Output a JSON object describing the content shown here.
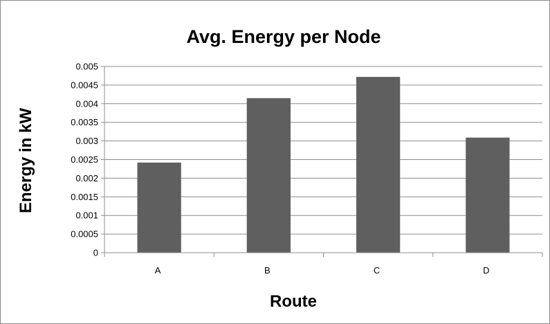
{
  "chart_data": {
    "type": "bar",
    "title": "Avg. Energy per Node",
    "xlabel": "Route",
    "ylabel": "Energy in kW",
    "categories": [
      "A",
      "B",
      "C",
      "D"
    ],
    "values": [
      0.00242,
      0.00415,
      0.00472,
      0.00309
    ],
    "ylim": [
      0,
      0.005
    ],
    "yticks": [
      {
        "value": 0,
        "label": "0"
      },
      {
        "value": 0.0005,
        "label": "0.0005"
      },
      {
        "value": 0.001,
        "label": "0.001"
      },
      {
        "value": 0.0015,
        "label": "0.0015"
      },
      {
        "value": 0.002,
        "label": "0.002"
      },
      {
        "value": 0.0025,
        "label": "0.0025"
      },
      {
        "value": 0.003,
        "label": "0.003"
      },
      {
        "value": 0.0035,
        "label": "0.0035"
      },
      {
        "value": 0.004,
        "label": "0.004"
      },
      {
        "value": 0.0045,
        "label": "0.0045"
      },
      {
        "value": 0.005,
        "label": "0.005"
      }
    ],
    "grid": true,
    "legend": "none",
    "bar_color": "#5f5f5f",
    "grid_color": "#8c8c8c"
  }
}
